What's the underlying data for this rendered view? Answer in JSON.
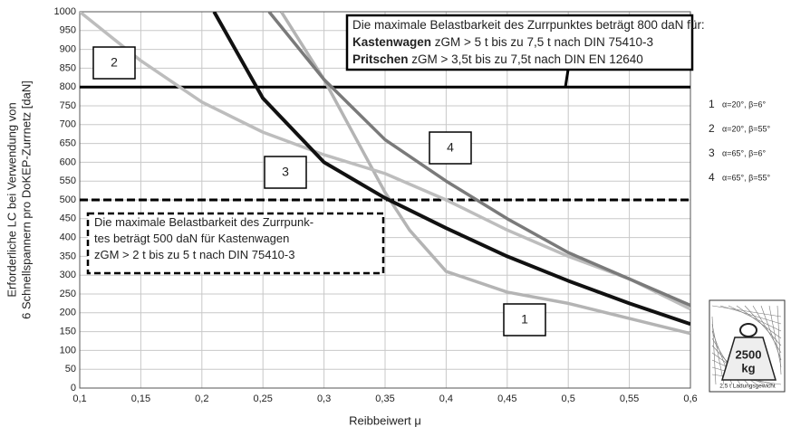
{
  "chart_data": {
    "type": "line",
    "x_label": "Reibbeiwert μ",
    "y_label_lines": [
      "Erforderliche LC bei Verwendung von",
      "6 Schnellspannern pro DoKEP-Zurrnetz [daN]"
    ],
    "xlim": [
      0.1,
      0.6
    ],
    "ylim": [
      0,
      1000
    ],
    "xticks": [
      {
        "value": 0.1,
        "label": "0,1"
      },
      {
        "value": 0.15,
        "label": "0,15"
      },
      {
        "value": 0.2,
        "label": "0,2"
      },
      {
        "value": 0.25,
        "label": "0,25"
      },
      {
        "value": 0.3,
        "label": "0,3"
      },
      {
        "value": 0.35,
        "label": "0,35"
      },
      {
        "value": 0.4,
        "label": "0,4"
      },
      {
        "value": 0.45,
        "label": "0,45"
      },
      {
        "value": 0.5,
        "label": "0,5"
      },
      {
        "value": 0.55,
        "label": "0,55"
      },
      {
        "value": 0.6,
        "label": "0,6"
      }
    ],
    "yticks": [
      0,
      50,
      100,
      150,
      200,
      250,
      300,
      350,
      400,
      450,
      500,
      550,
      600,
      650,
      700,
      750,
      800,
      850,
      900,
      950,
      1000
    ],
    "grid": true,
    "series": [
      {
        "name": "1",
        "description": "α=20°, β=6°",
        "color": "#b4b4b4",
        "x": [
          0.265,
          0.3,
          0.32,
          0.35,
          0.37,
          0.4,
          0.45,
          0.5,
          0.55,
          0.6
        ],
        "values": [
          1000,
          820,
          700,
          520,
          420,
          310,
          255,
          225,
          185,
          145
        ]
      },
      {
        "name": "2",
        "description": "α=20°, β=55°",
        "color": "#bdbdbd",
        "x": [
          0.1,
          0.15,
          0.2,
          0.25,
          0.3,
          0.35,
          0.4,
          0.45,
          0.5,
          0.55,
          0.6
        ],
        "values": [
          1000,
          870,
          760,
          680,
          620,
          570,
          500,
          420,
          350,
          290,
          210
        ]
      },
      {
        "name": "3",
        "description": "α=65°, β=6°",
        "color": "#111111",
        "x": [
          0.21,
          0.25,
          0.3,
          0.35,
          0.4,
          0.45,
          0.5,
          0.55,
          0.6
        ],
        "values": [
          1000,
          770,
          600,
          505,
          425,
          350,
          285,
          225,
          170
        ]
      },
      {
        "name": "4",
        "description": "α=65°, β=55°",
        "color": "#7a7a7a",
        "x": [
          0.255,
          0.3,
          0.35,
          0.4,
          0.45,
          0.5,
          0.55,
          0.6
        ],
        "values": [
          1000,
          820,
          660,
          550,
          450,
          360,
          290,
          220
        ]
      }
    ],
    "reference_lines": [
      {
        "value": 800,
        "style": "solid"
      },
      {
        "value": 500,
        "style": "dashed"
      }
    ],
    "annotations": [
      {
        "lines": [
          {
            "bold": "",
            "text": "Die maximale Belastbarkeit des Zurrpunktes beträgt 800 daN für:"
          },
          {
            "bold": "Kastenwagen",
            "text": " zGM > 5 t bis zu 7,5 t nach DIN 75410-3"
          },
          {
            "bold": "Pritschen",
            "text": " zGM > 3,5t bis zu 7,5t nach DIN EN 12640"
          }
        ]
      },
      {
        "lines": [
          {
            "bold": "",
            "text": "Die maximale Belastbarkeit des Zurrpunk-"
          },
          {
            "bold": "",
            "text": "tes beträgt 500 daN für Kastenwagen"
          },
          {
            "bold": "",
            "text": "zGM > 2 t bis zu 5 t nach DIN 75410-3"
          }
        ]
      }
    ],
    "icon": {
      "weight": "2500",
      "unit": "kg",
      "caption": "2,5 t Ladungsgewicht"
    }
  }
}
